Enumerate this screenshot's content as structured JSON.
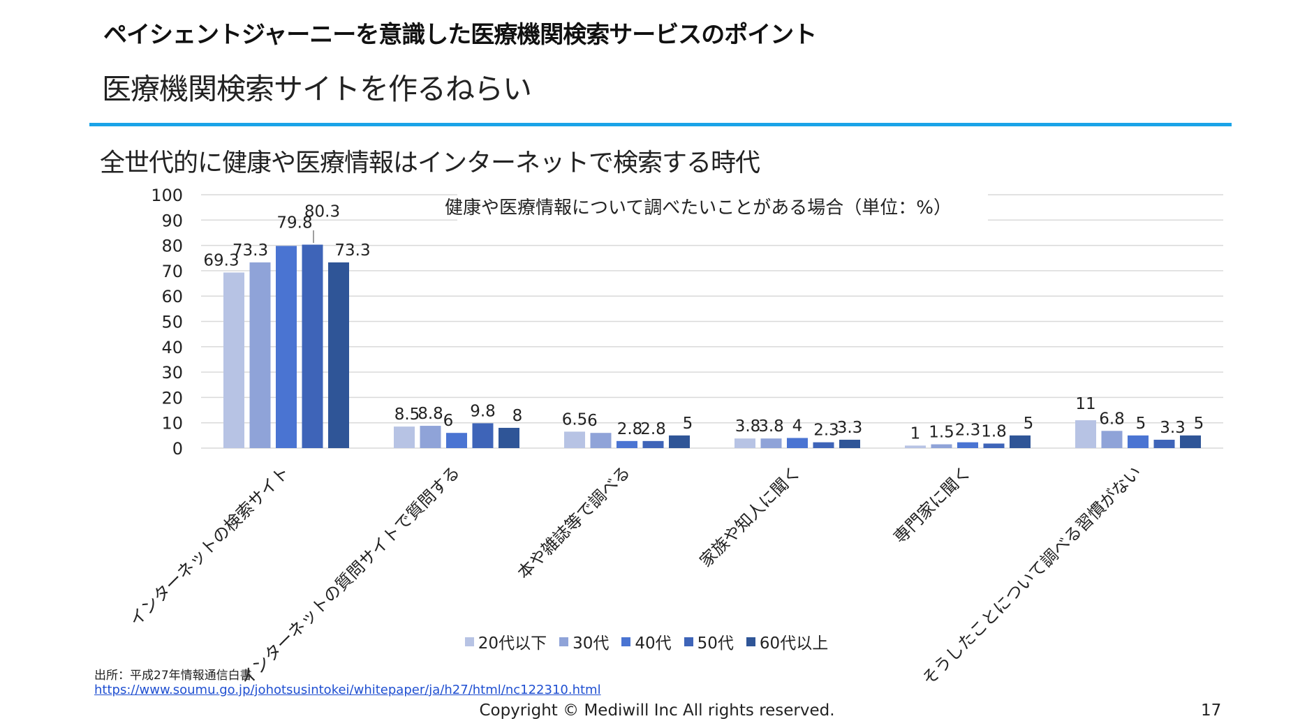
{
  "header": {
    "heading": "ペイシェントジャーニーを意識した医療機関検索サービスのポイント",
    "subheading": "医療機関検索サイトを作るねらい"
  },
  "section_title": "全世代的に健康や医療情報はインターネットで検索する時代",
  "colors": {
    "accent_rule": "#1aa3e8",
    "series": [
      "#b7c3e4",
      "#8fa3d8",
      "#4a74d2",
      "#3e64b8",
      "#2f5597"
    ]
  },
  "chart_data": {
    "type": "bar",
    "title": "健康や医療情報について調べたいことがある場合（単位：%）",
    "categories": [
      "インターネットの検索サイト",
      "インターネットの質問サイトで質問する",
      "本や雑誌等で調べる",
      "家族や知人に聞く",
      "専門家に聞く",
      "そうしたことについて調べる習慣がない"
    ],
    "series": [
      {
        "name": "20代以下",
        "values": [
          69.3,
          8.5,
          6.5,
          3.8,
          1,
          11
        ]
      },
      {
        "name": "30代",
        "values": [
          73.3,
          8.8,
          6,
          3.8,
          1.5,
          6.8
        ]
      },
      {
        "name": "40代",
        "values": [
          79.8,
          6,
          2.8,
          4,
          2.3,
          5
        ]
      },
      {
        "name": "50代",
        "values": [
          80.3,
          9.8,
          2.8,
          2.3,
          1.8,
          3.3
        ]
      },
      {
        "name": "60代以上",
        "values": [
          73.3,
          8,
          5,
          3.3,
          5,
          5
        ]
      }
    ],
    "y_ticks": [
      "100",
      "90",
      "80",
      "70",
      "60",
      "50",
      "40",
      "30",
      "20",
      "10",
      "0"
    ],
    "ylim": [
      0,
      100
    ],
    "grid": true,
    "legend_position": "bottom"
  },
  "footer": {
    "source_label": "出所：平成27年情報通信白書",
    "source_url": "https://www.soumu.go.jp/johotsusintokei/whitepaper/ja/h27/html/nc122310.html",
    "copyright": "Copyright © Mediwill Inc All rights reserved.",
    "page_number": "17"
  }
}
